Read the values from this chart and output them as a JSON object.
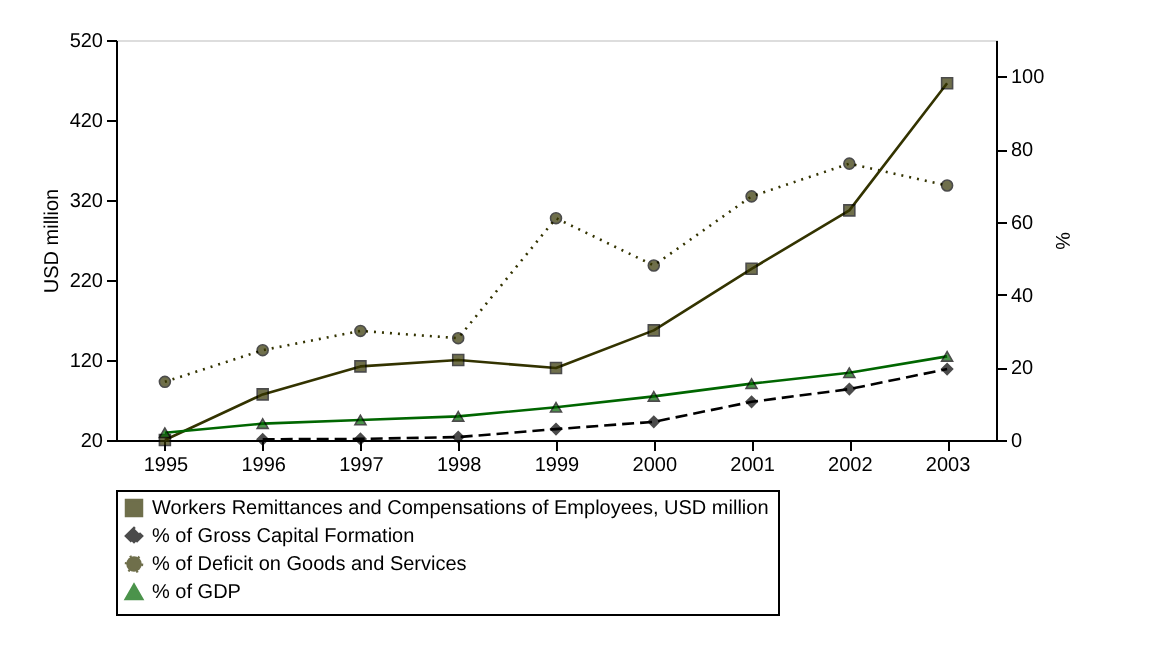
{
  "chart_data": {
    "type": "line",
    "ylabel": "USD million",
    "y2label": "%",
    "categories": [
      "1995",
      "1996",
      "1997",
      "1998",
      "1999",
      "2000",
      "2001",
      "2002",
      "2003"
    ],
    "ylim": [
      20,
      520
    ],
    "yticks": [
      20,
      120,
      220,
      320,
      420,
      520
    ],
    "y2lim": [
      0,
      110
    ],
    "y2ticks": [
      0,
      20,
      40,
      60,
      80,
      100
    ],
    "grid": false,
    "legend": "bottom",
    "series": [
      {
        "name": "Workers Remittances and Compensations of Employees, USD million",
        "color": "#333300",
        "values": [
          20,
          77,
          112,
          120,
          110,
          157,
          234,
          307,
          466
        ],
        "marker": "square",
        "line_style": "solid"
      },
      {
        "name": "% of Gross Capital Formation",
        "color": "#000000",
        "values": [
          null,
          0.2,
          0.3,
          0.8,
          3,
          5,
          10.5,
          14,
          19.5
        ],
        "axis": "y2",
        "marker": "diamond",
        "line_style": "dashed"
      },
      {
        "name": "% of Deficit on Goods and Services",
        "color": "#333300",
        "values": [
          16,
          24.7,
          30,
          28,
          61,
          48,
          67,
          76,
          70
        ],
        "axis": "y2",
        "marker": "circle",
        "line_style": "dotted"
      },
      {
        "name": "% of GDP",
        "color": "#006600",
        "values": [
          2,
          4.5,
          5.5,
          6.5,
          9,
          12,
          15.5,
          18.5,
          23
        ],
        "axis": "y2",
        "marker": "triangle",
        "line_style": "solid"
      }
    ]
  }
}
